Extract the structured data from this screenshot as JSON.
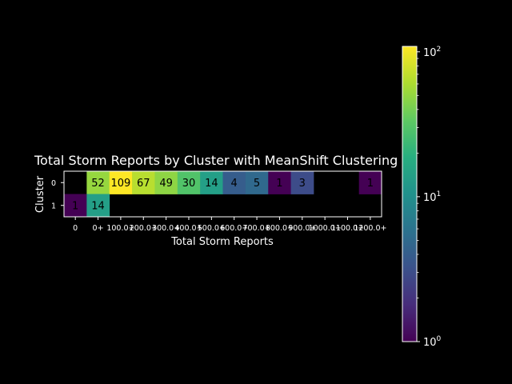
{
  "chart_data": {
    "type": "heatmap",
    "title": "Total Storm Reports by Cluster with MeanShift Clustering",
    "xlabel": "Total Storm Reports",
    "ylabel": "Cluster",
    "x_categories": [
      "0",
      "0+",
      "100.0+",
      "200.0+",
      "300.0+",
      "400.0+",
      "500.0+",
      "600.0+",
      "700.0+",
      "800.0+",
      "900.0+",
      "1000.0+",
      "1100.0+",
      "1200.0+"
    ],
    "y_categories": [
      "0",
      "1"
    ],
    "values": [
      [
        null,
        52,
        109,
        67,
        49,
        30,
        14,
        4,
        5,
        1,
        3,
        null,
        null,
        1
      ],
      [
        1,
        14,
        null,
        null,
        null,
        null,
        null,
        null,
        null,
        null,
        null,
        null,
        null,
        null
      ]
    ],
    "colorbar": {
      "scale": "log",
      "range": [
        1,
        109
      ],
      "colormap": "viridis",
      "ticks": [
        {
          "base": "10",
          "exp": "0"
        },
        {
          "base": "10",
          "exp": "1"
        },
        {
          "base": "10",
          "exp": "2"
        }
      ]
    },
    "colors": {
      "background": "#000000",
      "foreground": "#ffffff"
    },
    "grid": false
  }
}
